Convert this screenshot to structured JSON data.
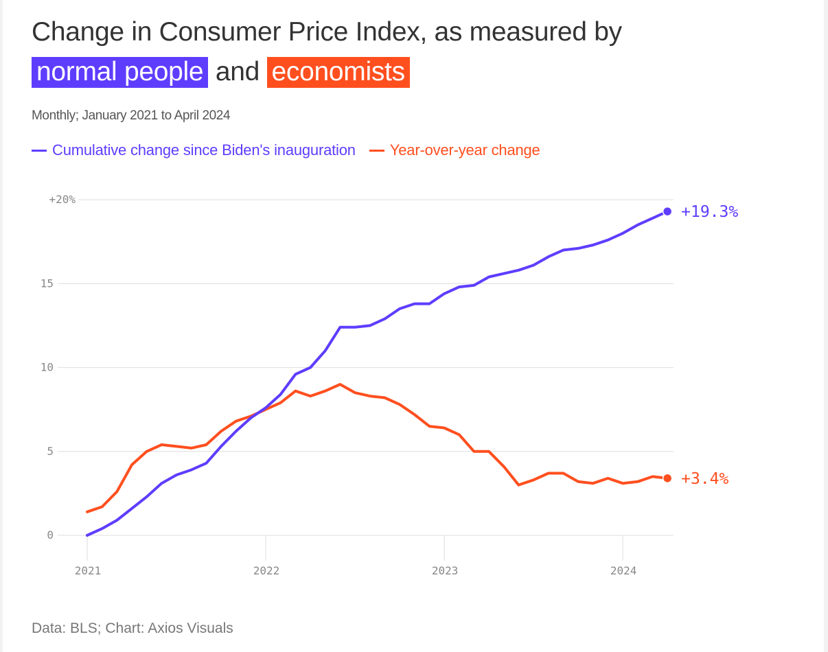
{
  "header": {
    "title_line1": "Change in Consumer Price Index, as measured by",
    "title_hl1": "normal people",
    "title_mid": "and",
    "title_hl2": "economists",
    "subtitle": "Monthly; January 2021 to April 2024"
  },
  "legend": [
    {
      "label": "Cumulative change since Biden's inauguration",
      "color": "#5f3dff"
    },
    {
      "label": "Year-over-year change",
      "color": "#ff4f1f"
    }
  ],
  "footer": "Data: BLS; Chart: Axios Visuals",
  "chart_data": {
    "type": "line",
    "title": "Change in Consumer Price Index, as measured by normal people and economists",
    "subtitle": "Monthly; January 2021 to April 2024",
    "xlabel": "",
    "ylabel": "",
    "x_start": "2021-01",
    "x_end": "2024-04",
    "x_ticks": [
      {
        "label": "2021",
        "month_index": 0
      },
      {
        "label": "2022",
        "month_index": 12
      },
      {
        "label": "2023",
        "month_index": 24
      },
      {
        "label": "2024",
        "month_index": 36
      }
    ],
    "y_ticks": [
      {
        "value": 0,
        "label": "0"
      },
      {
        "value": 5,
        "label": "5"
      },
      {
        "value": 10,
        "label": "10"
      },
      {
        "value": 15,
        "label": "15"
      },
      {
        "value": 20,
        "label": "+20%"
      }
    ],
    "ylim": [
      0,
      20
    ],
    "grid": true,
    "legend_position": "top-left",
    "series": [
      {
        "name": "Cumulative change since Biden's inauguration",
        "color": "#5f3dff",
        "end_label": "+19.3%",
        "values": [
          0,
          0.4,
          0.9,
          1.6,
          2.3,
          3.1,
          3.6,
          3.9,
          4.3,
          5.3,
          6.2,
          7.0,
          7.6,
          8.4,
          9.6,
          10.0,
          11.0,
          12.4,
          12.4,
          12.5,
          12.9,
          13.5,
          13.8,
          13.8,
          14.4,
          14.8,
          14.9,
          15.4,
          15.6,
          15.8,
          16.1,
          16.6,
          17.0,
          17.1,
          17.3,
          17.6,
          18.0,
          18.5,
          18.9,
          19.3
        ]
      },
      {
        "name": "Year-over-year change",
        "color": "#ff4f1f",
        "end_label": "+3.4%",
        "values": [
          1.4,
          1.7,
          2.6,
          4.2,
          5.0,
          5.4,
          5.3,
          5.2,
          5.4,
          6.2,
          6.8,
          7.1,
          7.5,
          7.9,
          8.6,
          8.3,
          8.6,
          9.0,
          8.5,
          8.3,
          8.2,
          7.8,
          7.2,
          6.5,
          6.4,
          6.0,
          5.0,
          5.0,
          4.1,
          3.0,
          3.3,
          3.7,
          3.7,
          3.2,
          3.1,
          3.4,
          3.1,
          3.2,
          3.5,
          3.4
        ]
      }
    ]
  }
}
